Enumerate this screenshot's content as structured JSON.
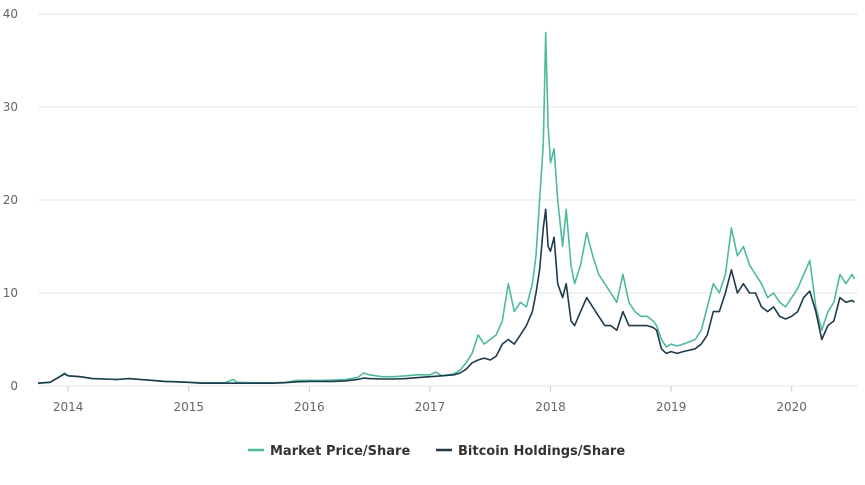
{
  "chart_data": {
    "type": "line",
    "title": "",
    "xlabel": "",
    "ylabel": "",
    "xlim": [
      2013.75,
      2020.55
    ],
    "ylim": [
      0,
      40
    ],
    "grid": "horizontal",
    "legend": "bottom-center",
    "x_ticks": [
      "2014",
      "2015",
      "2016",
      "2017",
      "2018",
      "2019",
      "2020"
    ],
    "y_ticks": [
      "0",
      "10",
      "20",
      "30",
      "40"
    ],
    "series": [
      {
        "name": "Market Price/Share",
        "color": "#4fb99f",
        "points": [
          [
            2013.75,
            0.3
          ],
          [
            2013.85,
            0.4
          ],
          [
            2013.93,
            1.0
          ],
          [
            2013.97,
            1.4
          ],
          [
            2014.0,
            1.1
          ],
          [
            2014.1,
            1.0
          ],
          [
            2014.2,
            0.8
          ],
          [
            2014.3,
            0.75
          ],
          [
            2014.4,
            0.7
          ],
          [
            2014.5,
            0.8
          ],
          [
            2014.6,
            0.7
          ],
          [
            2014.7,
            0.6
          ],
          [
            2014.8,
            0.5
          ],
          [
            2014.9,
            0.45
          ],
          [
            2015.0,
            0.4
          ],
          [
            2015.1,
            0.35
          ],
          [
            2015.2,
            0.35
          ],
          [
            2015.3,
            0.35
          ],
          [
            2015.37,
            0.7
          ],
          [
            2015.4,
            0.4
          ],
          [
            2015.5,
            0.35
          ],
          [
            2015.6,
            0.35
          ],
          [
            2015.7,
            0.35
          ],
          [
            2015.8,
            0.4
          ],
          [
            2015.9,
            0.6
          ],
          [
            2016.0,
            0.6
          ],
          [
            2016.1,
            0.6
          ],
          [
            2016.2,
            0.65
          ],
          [
            2016.3,
            0.7
          ],
          [
            2016.4,
            0.9
          ],
          [
            2016.45,
            1.4
          ],
          [
            2016.5,
            1.2
          ],
          [
            2016.6,
            1.0
          ],
          [
            2016.7,
            1.0
          ],
          [
            2016.8,
            1.1
          ],
          [
            2016.9,
            1.2
          ],
          [
            2017.0,
            1.2
          ],
          [
            2017.05,
            1.5
          ],
          [
            2017.1,
            1.1
          ],
          [
            2017.2,
            1.3
          ],
          [
            2017.25,
            1.7
          ],
          [
            2017.3,
            2.5
          ],
          [
            2017.35,
            3.5
          ],
          [
            2017.4,
            5.5
          ],
          [
            2017.45,
            4.5
          ],
          [
            2017.5,
            5.0
          ],
          [
            2017.55,
            5.5
          ],
          [
            2017.6,
            7.0
          ],
          [
            2017.65,
            11.0
          ],
          [
            2017.7,
            8.0
          ],
          [
            2017.75,
            9.0
          ],
          [
            2017.8,
            8.5
          ],
          [
            2017.85,
            11.0
          ],
          [
            2017.88,
            14.0
          ],
          [
            2017.91,
            20.0
          ],
          [
            2017.94,
            26.0
          ],
          [
            2017.96,
            38.0
          ],
          [
            2017.98,
            28.0
          ],
          [
            2018.0,
            24.0
          ],
          [
            2018.03,
            25.5
          ],
          [
            2018.06,
            20.0
          ],
          [
            2018.1,
            15.0
          ],
          [
            2018.13,
            19.0
          ],
          [
            2018.17,
            13.0
          ],
          [
            2018.2,
            11.0
          ],
          [
            2018.25,
            13.0
          ],
          [
            2018.3,
            16.5
          ],
          [
            2018.35,
            14.0
          ],
          [
            2018.4,
            12.0
          ],
          [
            2018.45,
            11.0
          ],
          [
            2018.5,
            10.0
          ],
          [
            2018.55,
            9.0
          ],
          [
            2018.6,
            12.0
          ],
          [
            2018.65,
            9.0
          ],
          [
            2018.7,
            8.0
          ],
          [
            2018.75,
            7.5
          ],
          [
            2018.8,
            7.5
          ],
          [
            2018.85,
            7.0
          ],
          [
            2018.88,
            6.5
          ],
          [
            2018.92,
            5.0
          ],
          [
            2018.96,
            4.2
          ],
          [
            2019.0,
            4.5
          ],
          [
            2019.05,
            4.3
          ],
          [
            2019.1,
            4.5
          ],
          [
            2019.2,
            5.0
          ],
          [
            2019.25,
            6.0
          ],
          [
            2019.3,
            8.5
          ],
          [
            2019.35,
            11.0
          ],
          [
            2019.4,
            10.0
          ],
          [
            2019.45,
            12.0
          ],
          [
            2019.5,
            17.0
          ],
          [
            2019.55,
            14.0
          ],
          [
            2019.6,
            15.0
          ],
          [
            2019.65,
            13.0
          ],
          [
            2019.7,
            12.0
          ],
          [
            2019.75,
            11.0
          ],
          [
            2019.8,
            9.5
          ],
          [
            2019.85,
            10.0
          ],
          [
            2019.9,
            9.0
          ],
          [
            2019.95,
            8.5
          ],
          [
            2020.0,
            9.5
          ],
          [
            2020.05,
            10.5
          ],
          [
            2020.1,
            12.0
          ],
          [
            2020.15,
            13.5
          ],
          [
            2020.2,
            8.5
          ],
          [
            2020.25,
            6.0
          ],
          [
            2020.3,
            8.0
          ],
          [
            2020.35,
            9.0
          ],
          [
            2020.4,
            12.0
          ],
          [
            2020.45,
            11.0
          ],
          [
            2020.5,
            12.0
          ],
          [
            2020.52,
            11.5
          ]
        ]
      },
      {
        "name": "Bitcoin Holdings/Share",
        "color": "#1f3a4d",
        "points": [
          [
            2013.75,
            0.3
          ],
          [
            2013.85,
            0.4
          ],
          [
            2013.93,
            1.0
          ],
          [
            2013.97,
            1.3
          ],
          [
            2014.0,
            1.1
          ],
          [
            2014.1,
            1.0
          ],
          [
            2014.2,
            0.8
          ],
          [
            2014.3,
            0.75
          ],
          [
            2014.4,
            0.7
          ],
          [
            2014.5,
            0.8
          ],
          [
            2014.6,
            0.7
          ],
          [
            2014.7,
            0.6
          ],
          [
            2014.8,
            0.5
          ],
          [
            2014.9,
            0.45
          ],
          [
            2015.0,
            0.4
          ],
          [
            2015.1,
            0.3
          ],
          [
            2015.2,
            0.3
          ],
          [
            2015.3,
            0.3
          ],
          [
            2015.4,
            0.3
          ],
          [
            2015.5,
            0.3
          ],
          [
            2015.6,
            0.3
          ],
          [
            2015.7,
            0.3
          ],
          [
            2015.8,
            0.35
          ],
          [
            2015.9,
            0.45
          ],
          [
            2016.0,
            0.5
          ],
          [
            2016.1,
            0.5
          ],
          [
            2016.2,
            0.5
          ],
          [
            2016.3,
            0.55
          ],
          [
            2016.4,
            0.7
          ],
          [
            2016.45,
            0.85
          ],
          [
            2016.5,
            0.8
          ],
          [
            2016.6,
            0.75
          ],
          [
            2016.7,
            0.75
          ],
          [
            2016.8,
            0.8
          ],
          [
            2016.9,
            0.9
          ],
          [
            2017.0,
            1.0
          ],
          [
            2017.1,
            1.1
          ],
          [
            2017.2,
            1.2
          ],
          [
            2017.25,
            1.4
          ],
          [
            2017.3,
            1.8
          ],
          [
            2017.35,
            2.5
          ],
          [
            2017.4,
            2.8
          ],
          [
            2017.45,
            3.0
          ],
          [
            2017.5,
            2.8
          ],
          [
            2017.55,
            3.2
          ],
          [
            2017.6,
            4.5
          ],
          [
            2017.65,
            5.0
          ],
          [
            2017.7,
            4.5
          ],
          [
            2017.75,
            5.5
          ],
          [
            2017.8,
            6.5
          ],
          [
            2017.85,
            8.0
          ],
          [
            2017.88,
            10.0
          ],
          [
            2017.91,
            12.5
          ],
          [
            2017.94,
            17.0
          ],
          [
            2017.96,
            19.0
          ],
          [
            2017.98,
            15.0
          ],
          [
            2018.0,
            14.5
          ],
          [
            2018.03,
            16.0
          ],
          [
            2018.06,
            11.0
          ],
          [
            2018.1,
            9.5
          ],
          [
            2018.13,
            11.0
          ],
          [
            2018.17,
            7.0
          ],
          [
            2018.2,
            6.5
          ],
          [
            2018.25,
            8.0
          ],
          [
            2018.3,
            9.5
          ],
          [
            2018.35,
            8.5
          ],
          [
            2018.4,
            7.5
          ],
          [
            2018.45,
            6.5
          ],
          [
            2018.5,
            6.5
          ],
          [
            2018.55,
            6.0
          ],
          [
            2018.6,
            8.0
          ],
          [
            2018.65,
            6.5
          ],
          [
            2018.7,
            6.5
          ],
          [
            2018.75,
            6.5
          ],
          [
            2018.8,
            6.5
          ],
          [
            2018.85,
            6.3
          ],
          [
            2018.88,
            6.0
          ],
          [
            2018.92,
            4.0
          ],
          [
            2018.96,
            3.5
          ],
          [
            2019.0,
            3.7
          ],
          [
            2019.05,
            3.5
          ],
          [
            2019.1,
            3.7
          ],
          [
            2019.2,
            4.0
          ],
          [
            2019.25,
            4.5
          ],
          [
            2019.3,
            5.5
          ],
          [
            2019.35,
            8.0
          ],
          [
            2019.4,
            8.0
          ],
          [
            2019.45,
            10.0
          ],
          [
            2019.5,
            12.5
          ],
          [
            2019.55,
            10.0
          ],
          [
            2019.6,
            11.0
          ],
          [
            2019.65,
            10.0
          ],
          [
            2019.7,
            10.0
          ],
          [
            2019.75,
            8.5
          ],
          [
            2019.8,
            8.0
          ],
          [
            2019.85,
            8.5
          ],
          [
            2019.9,
            7.5
          ],
          [
            2019.95,
            7.2
          ],
          [
            2020.0,
            7.5
          ],
          [
            2020.05,
            8.0
          ],
          [
            2020.1,
            9.5
          ],
          [
            2020.15,
            10.2
          ],
          [
            2020.2,
            8.0
          ],
          [
            2020.25,
            5.0
          ],
          [
            2020.3,
            6.5
          ],
          [
            2020.35,
            7.0
          ],
          [
            2020.4,
            9.5
          ],
          [
            2020.45,
            9.0
          ],
          [
            2020.5,
            9.2
          ],
          [
            2020.52,
            9.0
          ]
        ]
      }
    ]
  }
}
